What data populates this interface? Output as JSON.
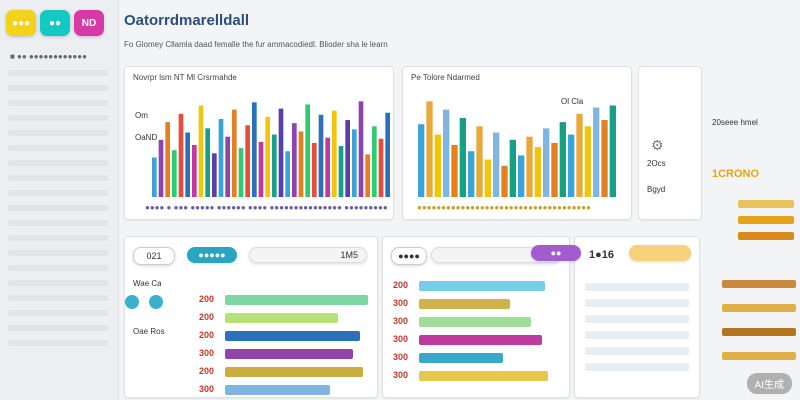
{
  "app": {
    "title": "Oatorrdmarelldall",
    "subtitle": "Fo Glomey Cllamla daad femalle the fur ammacodiedl. Blioder sha le learn",
    "watermark": "AI生成"
  },
  "sidebar": {
    "logo_buttons": [
      {
        "label": "●●●",
        "color": "#f4d21a"
      },
      {
        "label": "●●",
        "color": "#14c9c1"
      },
      {
        "label": "ND",
        "color": "#d53aa6"
      }
    ],
    "caption": "■ ●● ●●●●●●●●●●●●"
  },
  "top_left_chart": {
    "title": "Novrpr lsm  NT  Ml Crsrmahde",
    "labels": [
      "Om",
      "OaND"
    ],
    "legend": "●●●● ● ●●● ●●●●● ●●●●●● ●●●● ●●●●●●●●●●●●●●● ●●●●●●●●●",
    "colors": [
      "#3aa3d8",
      "#8e44ad",
      "#e67e22",
      "#2ecc71",
      "#e74c3c",
      "#2c6fbb",
      "#c0399e",
      "#f1c40f",
      "#16a085",
      "#5b3fa8"
    ]
  },
  "chart_data": [
    {
      "type": "bar",
      "title": "",
      "xlabel": "",
      "ylabel": "",
      "values": [
        38,
        55,
        72,
        45,
        80,
        62,
        50,
        88,
        66,
        42,
        75,
        58,
        84,
        47,
        69,
        91,
        53,
        77,
        60,
        85,
        44,
        71,
        63,
        89,
        52,
        79,
        57,
        83,
        49,
        74,
        65,
        92,
        41,
        68,
        56,
        81
      ],
      "ylim": [
        0,
        100
      ]
    },
    {
      "type": "bar",
      "title": "",
      "xlabel": "",
      "ylabel": "",
      "values": [
        70,
        92,
        60,
        84,
        50,
        76,
        44,
        68,
        36,
        62,
        30,
        55,
        40,
        58,
        48,
        66,
        52,
        72,
        60,
        80,
        68,
        86,
        74,
        88
      ],
      "ylim": [
        0,
        100
      ]
    }
  ],
  "top_right_chart": {
    "title": "Pe Tolore  Ndarmed",
    "label": "Ol Cla",
    "legend": "●●●●●●●●●●●●●●●●●●●●●●●●●●●●●●●●●●●●"
  },
  "small_card": {
    "value": "2Ocs",
    "label": "Bgyd"
  },
  "right_panel": {
    "title": "20seee  hmel",
    "sub": "1CRONO"
  },
  "bottom": {
    "card1": {
      "badge": "021",
      "pill": "●●●●●",
      "value": "1M5",
      "labels": [
        "Wae Ca",
        "Oae Ros"
      ],
      "rows": [
        {
          "num": "200",
          "color": "#7ed6a3",
          "value": 0.95
        },
        {
          "num": "200",
          "color": "#b8e07a",
          "value": 0.75
        },
        {
          "num": "200",
          "color": "#2c6fbb",
          "value": 0.9
        },
        {
          "num": "300",
          "color": "#8e44ad",
          "value": 0.85
        },
        {
          "num": "200",
          "color": "#c9ae3f",
          "value": 0.92
        },
        {
          "num": "300",
          "color": "#7fb5e3",
          "value": 0.7
        }
      ]
    },
    "card2": {
      "badge": "●●●●",
      "value": "●●●",
      "rows": [
        {
          "num": "200",
          "color": "#77cde8",
          "value": 0.9
        },
        {
          "num": "300",
          "color": "#d0b24c",
          "value": 0.65
        },
        {
          "num": "300",
          "color": "#a0dc9a",
          "value": 0.8
        },
        {
          "num": "300",
          "color": "#c0399e",
          "value": 0.88
        },
        {
          "num": "300",
          "color": "#3aa6c9",
          "value": 0.6
        },
        {
          "num": "300",
          "color": "#e6c84a",
          "value": 0.92
        }
      ]
    },
    "card3": {
      "badge": "●●",
      "value": "1●16"
    }
  }
}
